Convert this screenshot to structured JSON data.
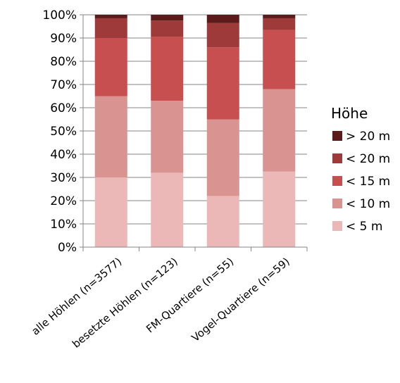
{
  "chart_data": {
    "type": "bar",
    "stacked": true,
    "percent_stacked": true,
    "categories": [
      "alle Höhlen (n=3577)",
      "besetzte Höhlen (n=123)",
      "FM-Quartiere (n=55)",
      "Vogel-Quartiere (n=59)"
    ],
    "y_ticks": [
      "0%",
      "10%",
      "20%",
      "30%",
      "40%",
      "50%",
      "60%",
      "70%",
      "80%",
      "90%",
      "100%"
    ],
    "ylim": [
      0,
      100
    ],
    "grid": true,
    "legend_title": "Höhe",
    "legend_position": "right",
    "series": [
      {
        "name": "< 5 m",
        "color": "#ebb7b7",
        "values": [
          30,
          32,
          22,
          32.5
        ]
      },
      {
        "name": "< 10 m",
        "color": "#d99391",
        "values": [
          35,
          31,
          33,
          35.5
        ]
      },
      {
        "name": "< 15 m",
        "color": "#c74f4f",
        "values": [
          25,
          27.5,
          31,
          25.5
        ]
      },
      {
        "name": "< 20 m",
        "color": "#9e3a3a",
        "values": [
          8.5,
          7,
          10.5,
          5
        ]
      },
      {
        "name": "> 20 m",
        "color": "#5c1b1b",
        "values": [
          1.5,
          2.5,
          3.5,
          1.5
        ]
      }
    ]
  }
}
